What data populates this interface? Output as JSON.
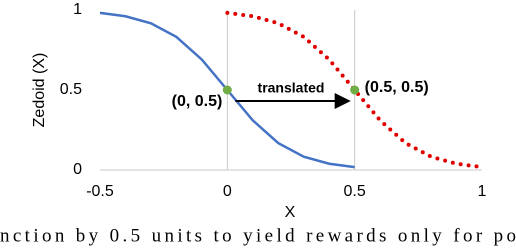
{
  "chart_data": {
    "type": "line",
    "xlabel": "X",
    "ylabel": "Zedoid (X)",
    "xlim": [
      -0.5,
      1
    ],
    "xticks": [
      -0.5,
      0,
      0.5,
      1
    ],
    "ylim": [
      0,
      1
    ],
    "yticks": [
      0,
      0.5,
      1
    ],
    "xgrid": true,
    "series": [
      {
        "color": "#4472c4",
        "style": "solid",
        "x": [
          -0.5,
          -0.4,
          -0.3,
          -0.2,
          -0.1,
          0,
          0.1,
          0.2,
          0.3,
          0.4,
          0.5
        ],
        "values": [
          0.982,
          0.961,
          0.917,
          0.832,
          0.69,
          0.5,
          0.31,
          0.168,
          0.083,
          0.039,
          0.018
        ]
      },
      {
        "color": "#e00000",
        "style": "dotted",
        "x": [
          0,
          0.1,
          0.2,
          0.3,
          0.4,
          0.5,
          0.6,
          0.7,
          0.8,
          0.9,
          1
        ],
        "values": [
          0.982,
          0.961,
          0.917,
          0.832,
          0.69,
          0.5,
          0.31,
          0.168,
          0.083,
          0.039,
          0.018
        ]
      }
    ],
    "points": [
      {
        "x": 0,
        "y": 0.5,
        "label": "(0, 0.5)",
        "color": "#70ad47"
      },
      {
        "x": 0.5,
        "y": 0.5,
        "label": "(0.5, 0.5)",
        "color": "#70ad47"
      }
    ],
    "arrow_label": "translated",
    "caption": "nction by 0.5 units to yield rewards only for po"
  }
}
